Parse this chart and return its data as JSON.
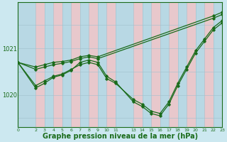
{
  "background_color": "#cce8f0",
  "grid_color_light": "#b8d8e4",
  "grid_color_pink": "#e8c8cc",
  "line_color": "#1a6b1a",
  "marker_color": "#1a6b1a",
  "xlabel": "Graphe pression niveau de la mer (hPa)",
  "xlabel_fontsize": 7,
  "xlim": [
    0,
    23
  ],
  "ylim": [
    1019.3,
    1022.0
  ],
  "ytick_positions": [
    1020.0,
    1021.0
  ],
  "ytick_labels": [
    "1020",
    "1021"
  ],
  "xticks": [
    0,
    2,
    3,
    4,
    5,
    6,
    7,
    8,
    9,
    10,
    11,
    13,
    14,
    15,
    16,
    17,
    18,
    19,
    20,
    21,
    22,
    23
  ],
  "pink_columns": [
    2,
    4,
    6,
    8,
    10,
    13,
    15,
    17,
    19,
    21,
    23
  ],
  "series": [
    {
      "x": [
        0,
        2,
        3,
        4,
        5,
        6,
        7,
        8,
        9,
        10,
        11,
        13,
        14,
        15,
        16,
        17,
        18,
        19,
        20,
        21,
        22,
        23
      ],
      "y": [
        1020.7,
        1020.2,
        1020.3,
        1020.4,
        1020.45,
        1020.55,
        1020.65,
        1020.7,
        1020.65,
        1020.35,
        1020.25,
        1019.9,
        1019.8,
        1019.65,
        1019.6,
        1019.85,
        1020.25,
        1020.6,
        1020.95,
        1021.2,
        1021.45,
        1021.6
      ]
    },
    {
      "x": [
        0,
        2,
        3,
        4,
        5,
        6,
        7,
        8,
        9,
        10,
        11,
        13,
        14,
        15,
        16,
        17,
        18,
        19,
        20,
        21,
        22,
        23
      ],
      "y": [
        1020.7,
        1020.15,
        1020.25,
        1020.38,
        1020.43,
        1020.53,
        1020.7,
        1020.75,
        1020.7,
        1020.4,
        1020.28,
        1019.85,
        1019.75,
        1019.6,
        1019.55,
        1019.8,
        1020.2,
        1020.55,
        1020.9,
        1021.15,
        1021.4,
        1021.55
      ]
    },
    {
      "x": [
        0,
        2,
        3,
        4,
        5,
        6,
        7,
        8,
        9,
        22,
        23
      ],
      "y": [
        1020.7,
        1020.6,
        1020.65,
        1020.7,
        1020.72,
        1020.75,
        1020.82,
        1020.85,
        1020.82,
        1021.7,
        1021.78
      ]
    },
    {
      "x": [
        0,
        2,
        3,
        4,
        5,
        6,
        7,
        8,
        9,
        22,
        23
      ],
      "y": [
        1020.7,
        1020.55,
        1020.6,
        1020.65,
        1020.68,
        1020.72,
        1020.78,
        1020.82,
        1020.78,
        1021.65,
        1021.73
      ]
    }
  ]
}
